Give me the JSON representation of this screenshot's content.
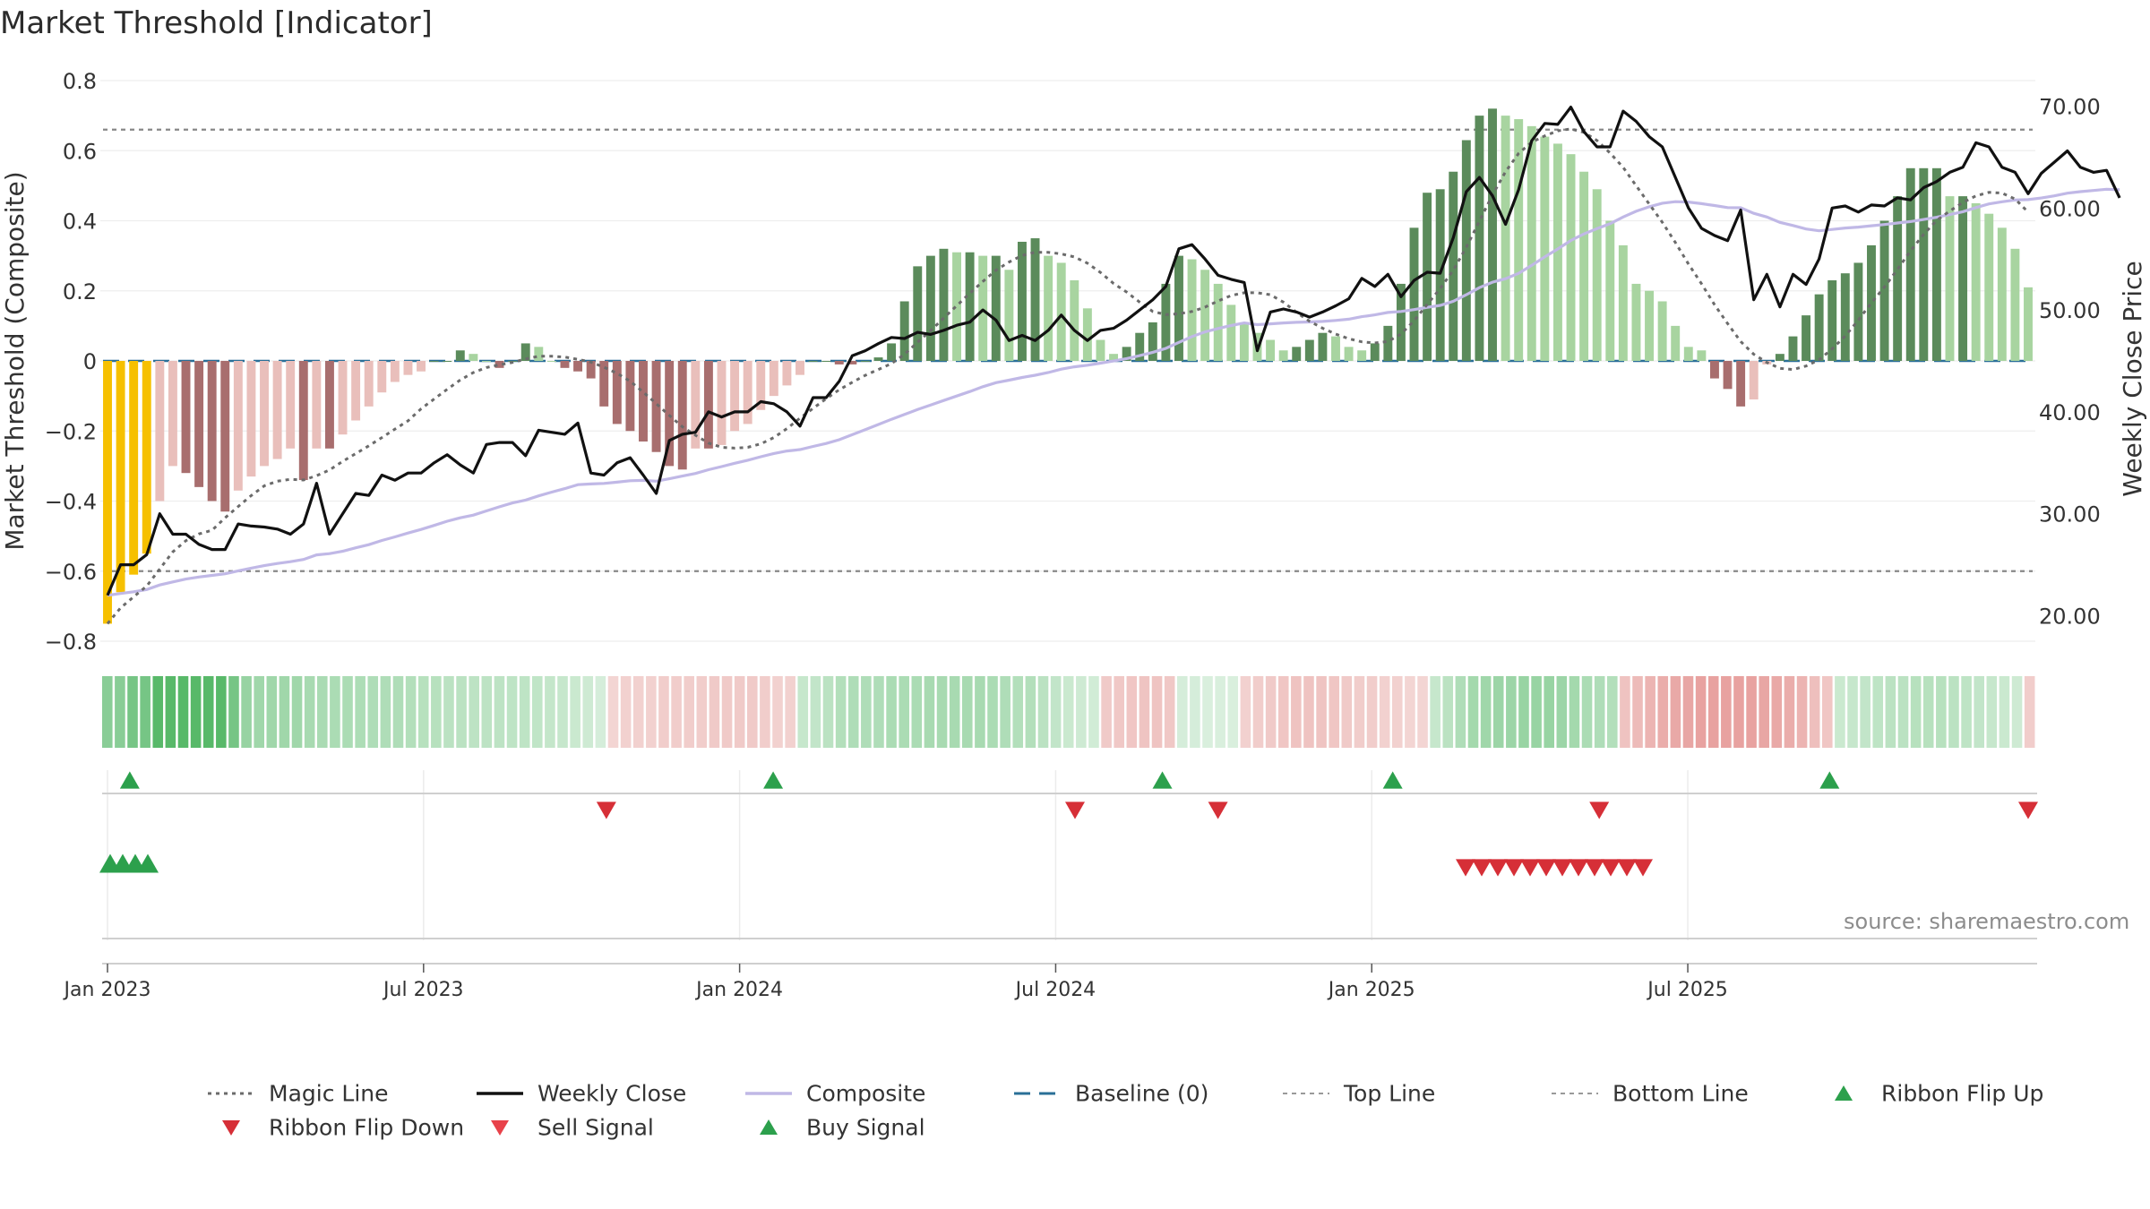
{
  "title": "Market Threshold [Indicator]",
  "source_note": "source: sharemaestro.com",
  "colors": {
    "ribbon_gold": "#f6c000",
    "pos_strong": "#5b8b5b",
    "pos_light": "#a8d4a0",
    "neg_strong": "#a86e6e",
    "neg_light": "#e9bfbb",
    "weekly_close": "#111111",
    "composite": "#c0b8e6",
    "magic_line": "#6b6b6b",
    "baseline": "#2a6f97",
    "buy_signal": "#2ca04c",
    "sell_signal": "#d62f37"
  },
  "chart_data": {
    "type": "bar",
    "title": "Market Threshold [Indicator]",
    "ylabel": "Market Threshold (Composite)",
    "y2label": "Weekly Close Price",
    "ylim": [
      -0.8,
      0.8
    ],
    "y2lim": [
      20,
      70
    ],
    "y_ticks": [
      "0.8",
      "0.6",
      "0.4",
      "0.2",
      "0",
      "−0.2",
      "−0.4",
      "−0.6",
      "−0.8"
    ],
    "y2_ticks": [
      "70.00",
      "60.00",
      "50.00",
      "40.00",
      "30.00",
      "20.00"
    ],
    "x_ticks": [
      "Jan 2023",
      "Jul 2023",
      "Jan 2024",
      "Jul 2024",
      "Jan 2025",
      "Jul 2025"
    ],
    "top_line": 0.66,
    "bottom_line": -0.6,
    "grid": true,
    "legend_position": "bottom",
    "legend": [
      "Magic Line",
      "Weekly Close",
      "Composite",
      "Baseline (0)",
      "Top Line",
      "Bottom Line",
      "Ribbon Flip Up",
      "Ribbon Flip Down",
      "Sell Signal",
      "Buy Signal"
    ],
    "bar_values": [
      -0.75,
      -0.66,
      -0.61,
      -0.55,
      -0.4,
      -0.3,
      -0.32,
      -0.36,
      -0.4,
      -0.43,
      -0.37,
      -0.33,
      -0.3,
      -0.28,
      -0.25,
      -0.34,
      -0.25,
      -0.25,
      -0.21,
      -0.17,
      -0.13,
      -0.09,
      -0.06,
      -0.04,
      -0.03,
      0,
      0,
      0.03,
      0.02,
      0,
      -0.02,
      0,
      0.05,
      0.04,
      0,
      -0.02,
      -0.03,
      -0.05,
      -0.13,
      -0.18,
      -0.2,
      -0.23,
      -0.26,
      -0.3,
      -0.31,
      -0.25,
      -0.25,
      -0.24,
      -0.2,
      -0.18,
      -0.14,
      -0.1,
      -0.07,
      -0.04,
      0,
      0,
      -0.01,
      -0.01,
      0,
      0.01,
      0.05,
      0.17,
      0.27,
      0.3,
      0.32,
      0.31,
      0.31,
      0.3,
      0.3,
      0.26,
      0.34,
      0.35,
      0.3,
      0.28,
      0.23,
      0.15,
      0.06,
      0.02,
      0.04,
      0.08,
      0.11,
      0.22,
      0.3,
      0.29,
      0.26,
      0.22,
      0.16,
      0.11,
      0.08,
      0.06,
      0.03,
      0.04,
      0.06,
      0.08,
      0.07,
      0.04,
      0.03,
      0.05,
      0.1,
      0.22,
      0.38,
      0.48,
      0.49,
      0.54,
      0.63,
      0.7,
      0.72,
      0.7,
      0.69,
      0.67,
      0.64,
      0.62,
      0.59,
      0.54,
      0.49,
      0.4,
      0.33,
      0.22,
      0.2,
      0.17,
      0.1,
      0.04,
      0.03,
      -0.05,
      -0.08,
      -0.13,
      -0.11,
      -0.01,
      0.02,
      0.07,
      0.13,
      0.19,
      0.23,
      0.25,
      0.28,
      0.33,
      0.4,
      0.47,
      0.55,
      0.55,
      0.55,
      0.47,
      0.47,
      0.45,
      0.42,
      0.38,
      0.32,
      0.21
    ],
    "weekly_close": [
      22,
      25,
      25,
      26,
      30,
      28,
      28,
      27,
      26.5,
      26.5,
      29,
      28.8,
      28.7,
      28.5,
      28,
      29,
      33,
      28,
      30,
      32,
      31.8,
      33.8,
      33.3,
      34,
      34,
      35,
      35.8,
      34.8,
      34,
      36.8,
      37,
      37,
      35.7,
      38.2,
      38,
      37.8,
      38.9,
      34,
      33.8,
      35,
      35.5,
      33.8,
      32,
      37.2,
      37.8,
      38,
      40,
      39.5,
      40,
      40,
      41,
      40.8,
      40,
      38.6,
      41.4,
      41.4,
      43,
      45.5,
      46,
      46.7,
      47.3,
      47.2,
      47.8,
      47.6,
      48,
      48.5,
      48.8,
      50,
      49,
      47,
      47.5,
      47,
      48,
      49.5,
      48,
      47,
      48,
      48.2,
      49,
      50,
      51,
      52.3,
      56,
      56.4,
      55,
      53.4,
      53,
      52.7,
      46,
      49.8,
      50.1,
      49.8,
      49.3,
      49.8,
      50.4,
      51.1,
      53.1,
      52.3,
      53.5,
      51.3,
      52.9,
      53.7,
      53.6,
      57.1,
      61.6,
      63,
      61.2,
      58.4,
      61.8,
      66.6,
      68.3,
      68.2,
      69.9,
      67.5,
      66,
      66,
      69.5,
      68.5,
      67,
      66,
      63,
      60,
      58,
      57.3,
      56.8,
      59.8,
      51,
      53.5,
      50.3,
      53.5,
      52.5,
      55,
      60,
      60.2,
      59.6,
      60.3,
      60.2,
      61,
      60.8,
      62,
      62.6,
      63.5,
      64,
      66.4,
      66,
      64,
      63.5,
      61.4,
      63.4,
      64.5,
      65.6,
      64,
      63.5,
      63.7,
      61
    ]
  },
  "ribbon": {
    "levels": [
      0.62,
      0.62,
      0.72,
      0.72,
      0.88,
      0.88,
      0.88,
      0.88,
      0.88,
      0.88,
      0.72,
      0.55,
      0.5,
      0.5,
      0.5,
      0.5,
      0.46,
      0.45,
      0.44,
      0.44,
      0.43,
      0.42,
      0.42,
      0.42,
      0.4,
      0.38,
      0.38,
      0.36,
      0.36,
      0.35,
      0.35,
      0.35,
      0.34,
      0.34,
      0.33,
      0.31,
      0.3,
      0.28,
      0.26,
      0.22,
      -0.18,
      -0.2,
      -0.2,
      -0.2,
      -0.22,
      -0.22,
      -0.22,
      -0.22,
      -0.24,
      -0.24,
      -0.24,
      -0.24,
      -0.22,
      -0.2,
      -0.2,
      0.3,
      0.32,
      0.36,
      0.4,
      0.42,
      0.42,
      0.42,
      0.44,
      0.44,
      0.44,
      0.46,
      0.46,
      0.46,
      0.46,
      0.46,
      0.44,
      0.42,
      0.4,
      0.4,
      0.36,
      0.32,
      0.28,
      0.26,
      0.24,
      -0.24,
      -0.25,
      -0.26,
      -0.27,
      -0.27,
      -0.25,
      0.22,
      0.22,
      0.2,
      0.2,
      0.2,
      -0.2,
      -0.22,
      -0.24,
      -0.26,
      -0.28,
      -0.28,
      -0.27,
      -0.26,
      -0.24,
      -0.22,
      -0.22,
      -0.2,
      -0.2,
      -0.18,
      -0.18,
      0.3,
      0.36,
      0.42,
      0.48,
      0.5,
      0.52,
      0.52,
      0.54,
      0.54,
      0.54,
      0.52,
      0.48,
      0.44,
      0.42,
      0.4,
      -0.28,
      -0.32,
      -0.36,
      -0.4,
      -0.42,
      -0.44,
      -0.46,
      -0.46,
      -0.46,
      -0.46,
      -0.46,
      -0.44,
      -0.42,
      -0.4,
      -0.36,
      -0.3,
      -0.26,
      0.28,
      0.3,
      0.32,
      0.34,
      0.36,
      0.36,
      0.38,
      0.38,
      0.38,
      0.36,
      0.34,
      0.32,
      0.3,
      0.28,
      0.26,
      -0.22
    ]
  },
  "signals": {
    "buy_signal_weeks": [
      1,
      82,
      131,
      160,
      215
    ],
    "sell_signal_weeks": [
      61,
      120,
      138,
      186,
      240
    ],
    "ribbon_flip_up_weeks": [
      0,
      1,
      2,
      3
    ],
    "ribbon_flip_down_weeks": [
      167,
      168,
      169,
      170,
      171,
      172,
      173,
      174,
      175,
      176,
      177,
      178
    ]
  }
}
